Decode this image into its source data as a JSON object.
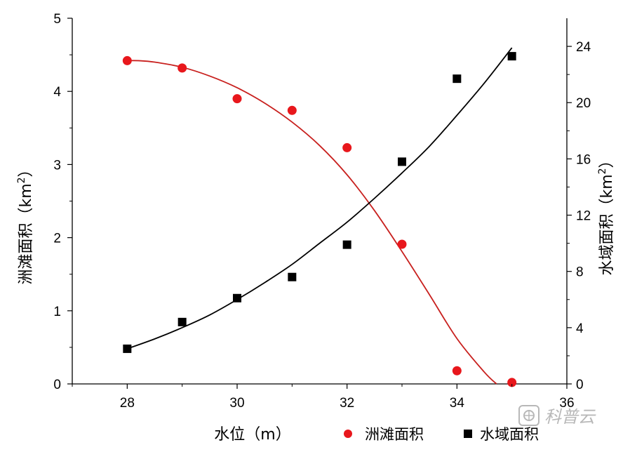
{
  "chart_data": {
    "type": "scatter",
    "xlabel": "水位（m）",
    "ylabel_left": "洲滩面积（km",
    "ylabel_left_sup": "2",
    "ylabel_left_end": "）",
    "ylabel_right": "水域面积（km",
    "ylabel_right_sup": "2",
    "ylabel_right_end": "）",
    "xlim": [
      27,
      36
    ],
    "xticks": [
      28,
      30,
      32,
      34,
      36
    ],
    "ylim_left": [
      0,
      5
    ],
    "yticks_left": [
      0,
      1,
      2,
      3,
      4,
      5
    ],
    "ylim_right": [
      0,
      26
    ],
    "yticks_right": [
      0,
      4,
      8,
      12,
      16,
      20,
      24
    ],
    "legend_position": "bottom",
    "series": [
      {
        "name": "洲滩面积",
        "axis": "left",
        "marker": "circle",
        "color": "#e8171c",
        "x": [
          28,
          29,
          30,
          31,
          32,
          33,
          34,
          35
        ],
        "y": [
          4.42,
          4.32,
          3.9,
          3.74,
          3.23,
          1.91,
          0.18,
          0.02
        ]
      },
      {
        "name": "水域面积",
        "axis": "right",
        "marker": "square",
        "color": "#000000",
        "x": [
          28,
          29,
          30,
          31,
          32,
          33,
          34,
          35
        ],
        "y": [
          2.5,
          4.4,
          6.1,
          7.6,
          9.9,
          15.8,
          21.7,
          23.3
        ]
      }
    ],
    "fits": [
      {
        "series": "洲滩面积",
        "color": "#c8201e",
        "x": [
          28,
          28.2,
          28.5,
          29,
          29.5,
          30,
          30.5,
          31,
          31.5,
          32,
          32.5,
          33,
          33.5,
          34,
          34.5,
          34.72
        ],
        "y": [
          4.42,
          4.42,
          4.4,
          4.33,
          4.21,
          4.05,
          3.84,
          3.58,
          3.26,
          2.86,
          2.37,
          1.81,
          1.22,
          0.62,
          0.16,
          0.0
        ]
      },
      {
        "series": "水域面积",
        "color": "#000000",
        "x": [
          28,
          28.5,
          29,
          29.5,
          30,
          30.5,
          31,
          31.5,
          32,
          32.5,
          33,
          33.5,
          34,
          34.5,
          35
        ],
        "y": [
          2.5,
          3.2,
          4.0,
          4.9,
          6.0,
          7.2,
          8.5,
          10.0,
          11.5,
          13.2,
          15.0,
          16.9,
          19.1,
          21.4,
          23.9
        ]
      }
    ]
  },
  "watermark": {
    "text": "科普云",
    "icon": "seal-icon",
    "color": "#b8b8b8"
  }
}
